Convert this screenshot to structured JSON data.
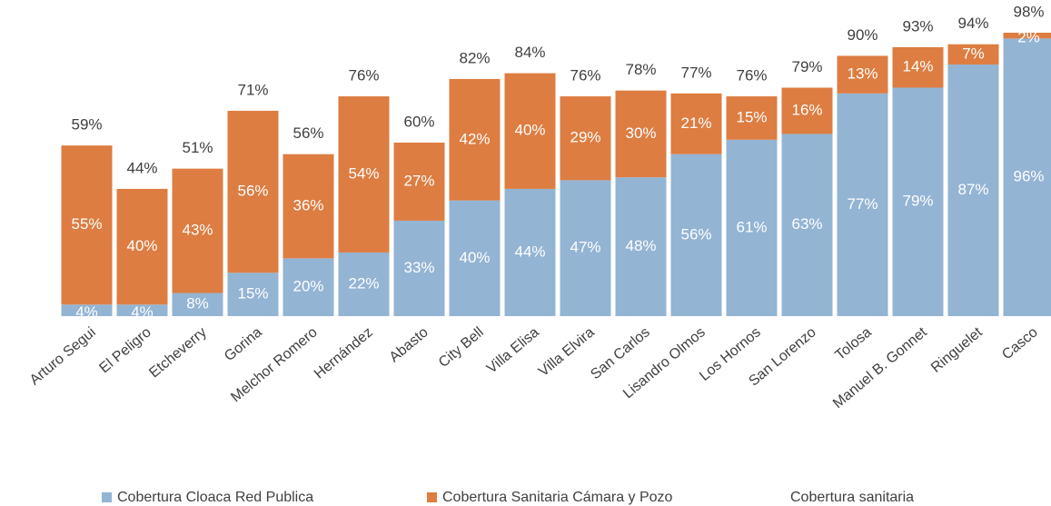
{
  "chart_data": {
    "type": "stacked_bar",
    "categories": [
      "Arturo Segui",
      "El Peligro",
      "Etcheverry",
      "Gorina",
      "Melchor Romero",
      "Hernández",
      "Abasto",
      "City Bell",
      "Villa Elisa",
      "Villa Elvira",
      "San Carlos",
      "Lisandro Olmos",
      "Los Hornos",
      "San Lorenzo",
      "Tolosa",
      "Manuel B. Gonnet",
      "Ringuelet",
      "Casco"
    ],
    "series": [
      {
        "name": "Cobertura Cloaca Red Publica",
        "color": "#93b4d3",
        "values": [
          4,
          4,
          8,
          15,
          20,
          22,
          33,
          40,
          44,
          47,
          48,
          56,
          61,
          63,
          77,
          79,
          87,
          96
        ],
        "value_labels": [
          "4%",
          "4%",
          "8%",
          "15%",
          "20%",
          "22%",
          "33%",
          "40%",
          "44%",
          "47%",
          "48%",
          "56%",
          "61%",
          "63%",
          "77%",
          "79%",
          "87%",
          "96%"
        ]
      },
      {
        "name": "Cobertura Sanitaria Cámara y Pozo",
        "color": "#dd7d42",
        "values": [
          55,
          40,
          43,
          56,
          36,
          54,
          27,
          42,
          40,
          29,
          30,
          21,
          15,
          16,
          13,
          14,
          7,
          2
        ],
        "value_labels": [
          "55%",
          "40%",
          "43%",
          "56%",
          "36%",
          "54%",
          "27%",
          "42%",
          "40%",
          "29%",
          "30%",
          "21%",
          "15%",
          "16%",
          "13%",
          "14%",
          "7%",
          "2%"
        ]
      },
      {
        "name": "Cobertura sanitaria",
        "values": [
          59,
          44,
          51,
          71,
          56,
          76,
          60,
          82,
          84,
          76,
          78,
          77,
          76,
          79,
          90,
          93,
          94,
          98
        ],
        "value_labels": [
          "59%",
          "44%",
          "51%",
          "71%",
          "56%",
          "76%",
          "60%",
          "82%",
          "84%",
          "76%",
          "78%",
          "77%",
          "76%",
          "79%",
          "90%",
          "93%",
          "94%",
          "98%"
        ]
      }
    ]
  }
}
